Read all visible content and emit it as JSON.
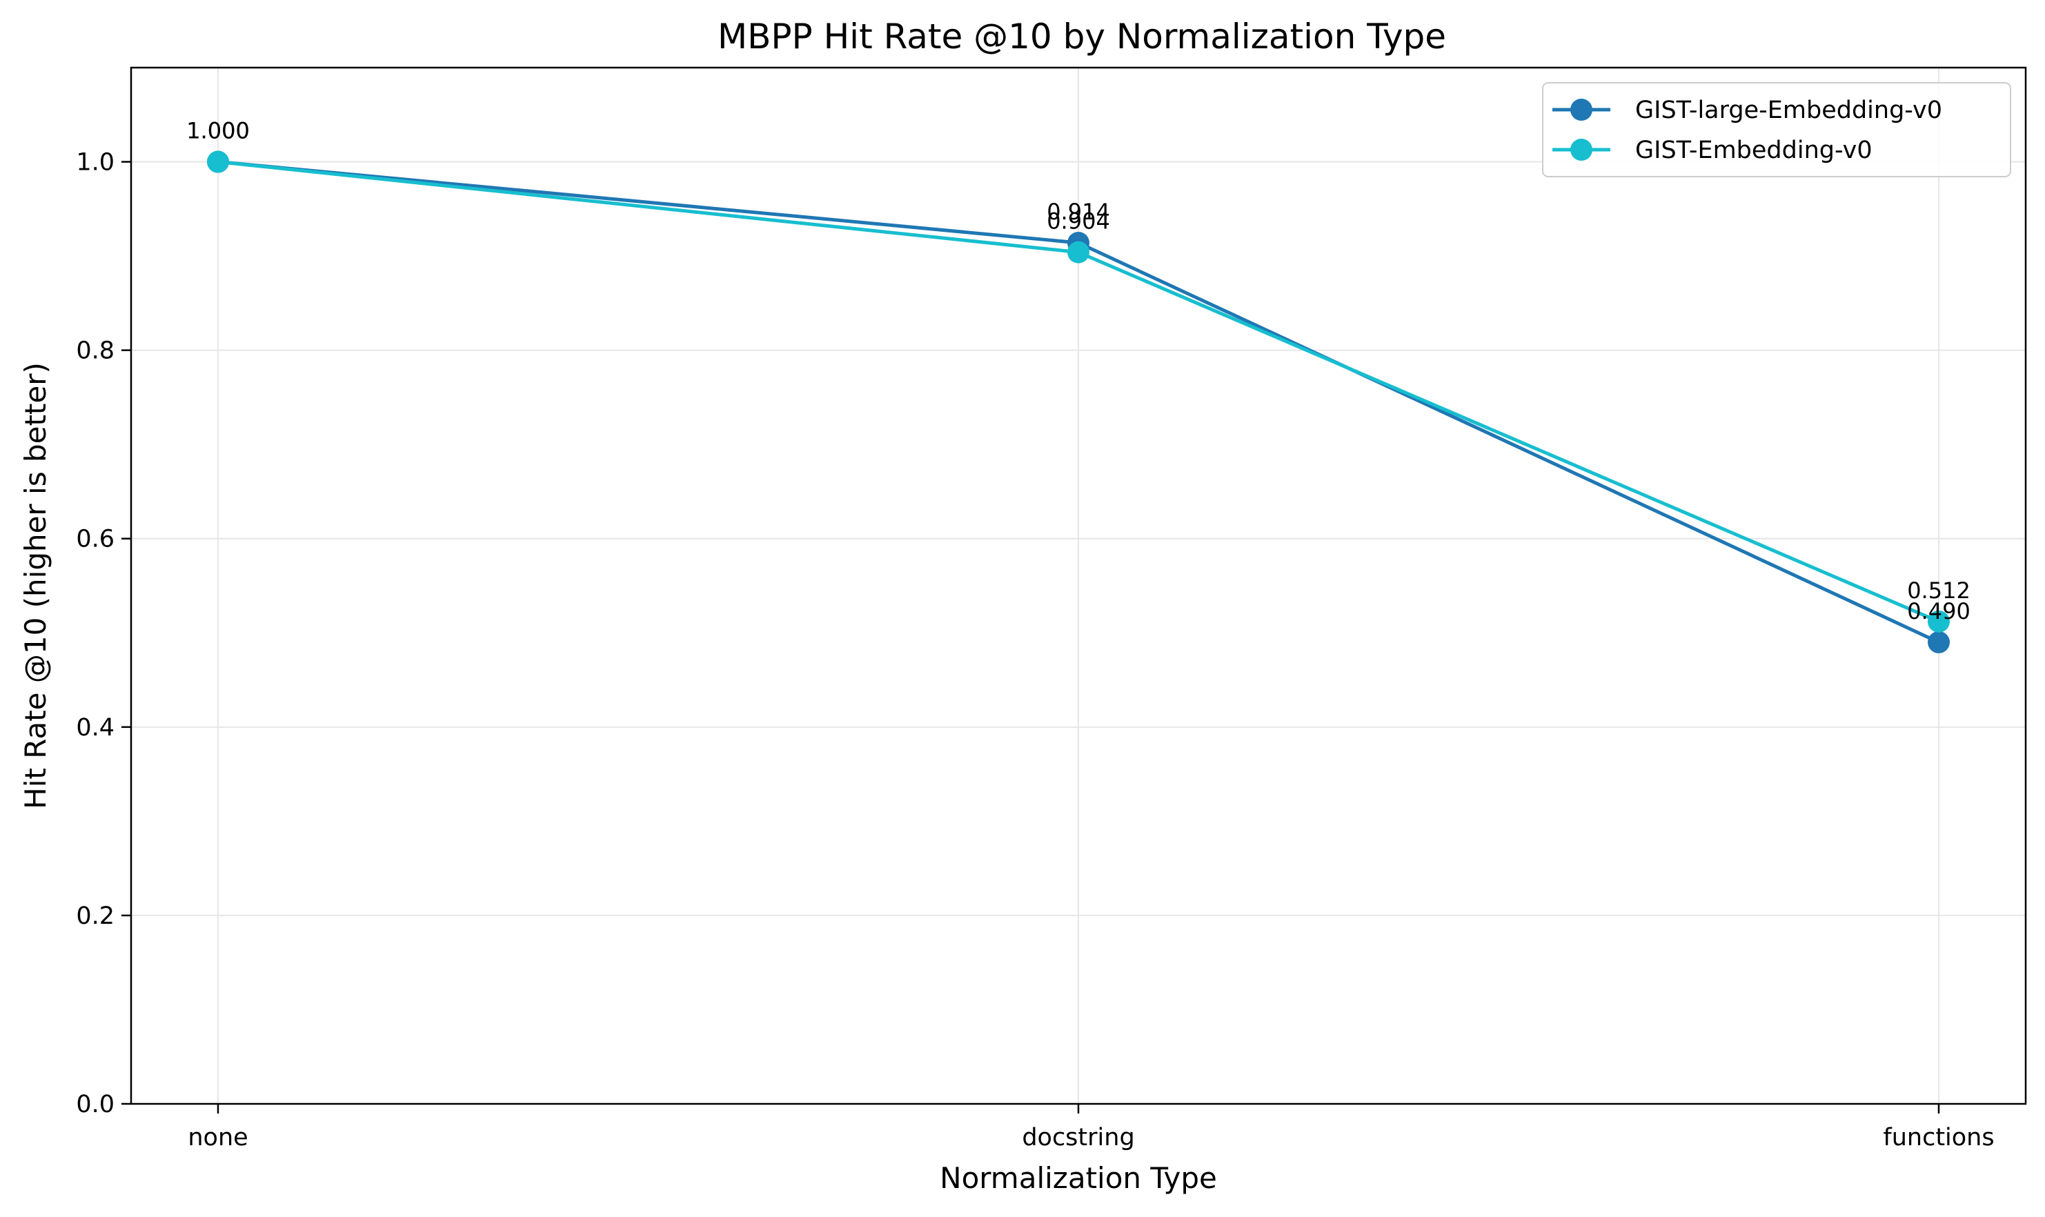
{
  "chart_data": {
    "type": "line",
    "title": "MBPP Hit Rate @10 by Normalization Type",
    "xlabel": "Normalization Type",
    "ylabel": "Hit Rate @10 (higher is better)",
    "categories": [
      "none",
      "docstring",
      "functions"
    ],
    "ylim": [
      0,
      1.1
    ],
    "yticks": [
      0.0,
      0.2,
      0.4,
      0.6,
      0.8,
      1.0
    ],
    "ytick_labels": [
      "0.0",
      "0.2",
      "0.4",
      "0.6",
      "0.8",
      "1.0"
    ],
    "grid": true,
    "legend_position": "top-right",
    "series": [
      {
        "name": "GIST-large-Embedding-v0",
        "color": "#1f77b4",
        "values": [
          1.0,
          0.914,
          0.49
        ],
        "labels": [
          "1.000",
          "0.914",
          "0.490"
        ]
      },
      {
        "name": "GIST-Embedding-v0",
        "color": "#17becf",
        "values": [
          1.0,
          0.904,
          0.512
        ],
        "labels": [
          "1.000",
          "0.904",
          "0.512"
        ]
      }
    ]
  }
}
